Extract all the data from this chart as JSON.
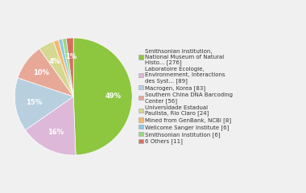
{
  "labels": [
    "Smithsonian Institution,\nNational Museum of Natural\nHisto... [276]",
    "Laboratoire Ecologie,\nEnvironnement, Interactions\ndes Syst... [89]",
    "Macrogen, Korea [83]",
    "Southern China DNA Barcoding\nCenter [56]",
    "Universidade Estadual\nPaulista, Rio Claro [24]",
    "Mined from GenBank, NCBI [8]",
    "Wellcome Sanger Institute [6]",
    "Smithsonian Institution [6]",
    "6 Others [11]"
  ],
  "values": [
    276,
    89,
    83,
    56,
    24,
    8,
    6,
    6,
    11
  ],
  "colors": [
    "#8dc63f",
    "#ddb8d8",
    "#b8cfe0",
    "#e8a898",
    "#d4d890",
    "#f4b870",
    "#90c8e0",
    "#98d880",
    "#d47060"
  ],
  "startangle": 90,
  "background_color": "#f0f0f0"
}
